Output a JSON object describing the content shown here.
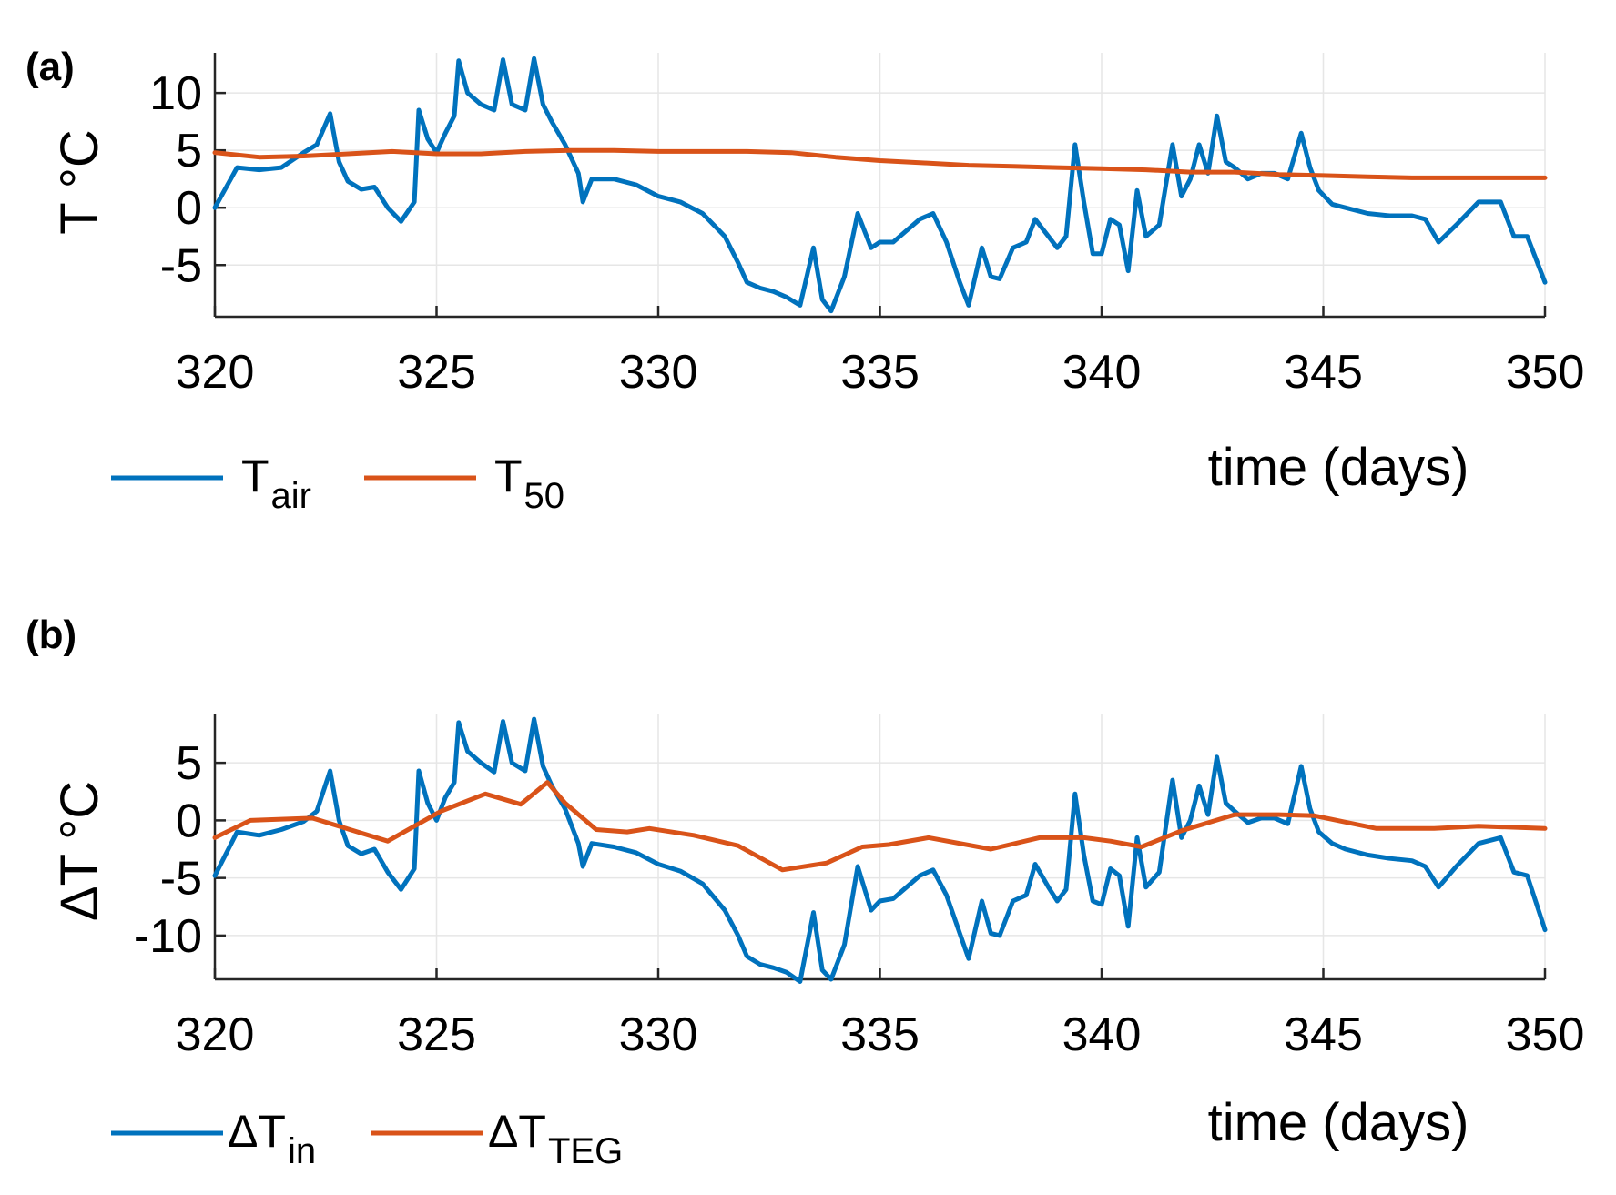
{
  "chart_data": [
    {
      "type": "line",
      "panel_label": "(a)",
      "ylabel": "T °C",
      "xlabel": "time (days)",
      "xlim": [
        320,
        350
      ],
      "ylim": [
        -9.5,
        13.5
      ],
      "xticks": [
        320,
        325,
        330,
        335,
        340,
        345,
        350
      ],
      "yticks": [
        -5,
        0,
        5,
        10
      ],
      "grid": true,
      "legend": [
        {
          "main": "T",
          "sub": "air",
          "color": "#0072BD"
        },
        {
          "main": "T",
          "sub": "50",
          "color": "#D95319"
        }
      ],
      "series": [
        {
          "name": "Tair",
          "color": "#0072BD",
          "x": [
            320.0,
            320.5,
            321.0,
            321.5,
            322.0,
            322.3,
            322.6,
            322.8,
            323.0,
            323.3,
            323.6,
            323.9,
            324.2,
            324.5,
            324.6,
            324.8,
            325.0,
            325.2,
            325.4,
            325.5,
            325.7,
            326.0,
            326.3,
            326.5,
            326.7,
            327.0,
            327.2,
            327.4,
            327.6,
            327.9,
            328.2,
            328.3,
            328.5,
            329.0,
            329.5,
            330.0,
            330.5,
            331.0,
            331.5,
            331.8,
            332.0,
            332.3,
            332.6,
            332.9,
            333.2,
            333.5,
            333.7,
            333.9,
            334.2,
            334.5,
            334.8,
            335.0,
            335.3,
            335.6,
            335.9,
            336.2,
            336.5,
            336.8,
            337.0,
            337.3,
            337.5,
            337.7,
            338.0,
            338.3,
            338.5,
            338.8,
            339.0,
            339.2,
            339.4,
            339.6,
            339.8,
            340.0,
            340.2,
            340.4,
            340.6,
            340.8,
            341.0,
            341.3,
            341.6,
            341.8,
            342.0,
            342.2,
            342.4,
            342.6,
            342.8,
            343.0,
            343.3,
            343.6,
            343.9,
            344.2,
            344.5,
            344.7,
            344.9,
            345.2,
            345.5,
            346.0,
            346.5,
            347.0,
            347.3,
            347.6,
            348.0,
            348.5,
            349.0,
            349.3,
            349.6,
            350.0
          ],
          "y": [
            0,
            3.5,
            3.3,
            3.5,
            4.8,
            5.5,
            8.2,
            4.0,
            2.3,
            1.6,
            1.8,
            0.0,
            -1.2,
            0.5,
            8.5,
            6.0,
            4.8,
            6.5,
            8.0,
            12.8,
            10.0,
            9.0,
            8.5,
            12.9,
            9.0,
            8.5,
            13.0,
            9.0,
            7.5,
            5.5,
            3.0,
            0.5,
            2.5,
            2.5,
            2.0,
            1.0,
            0.5,
            -0.5,
            -2.5,
            -4.8,
            -6.5,
            -7.0,
            -7.3,
            -7.8,
            -8.5,
            -3.5,
            -8.0,
            -9.0,
            -6.0,
            -0.5,
            -3.5,
            -3.0,
            -3.0,
            -2.0,
            -1.0,
            -0.5,
            -3.0,
            -6.5,
            -8.5,
            -3.5,
            -6.0,
            -6.2,
            -3.5,
            -3.0,
            -1.0,
            -2.5,
            -3.5,
            -2.5,
            5.5,
            0.5,
            -4.0,
            -4.0,
            -1.0,
            -1.5,
            -5.5,
            1.5,
            -2.5,
            -1.5,
            5.5,
            1.0,
            2.5,
            5.5,
            3.0,
            8.0,
            4.0,
            3.5,
            2.5,
            3.0,
            3.0,
            2.5,
            6.5,
            3.5,
            1.5,
            0.3,
            0.0,
            -0.5,
            -0.7,
            -0.7,
            -1.0,
            -3.0,
            -1.5,
            0.5,
            0.5,
            -2.5,
            -2.5,
            -6.5
          ]
        },
        {
          "name": "T50",
          "color": "#D95319",
          "x": [
            320,
            321,
            322,
            323,
            324,
            325,
            326,
            327,
            328,
            329,
            330,
            331,
            332,
            333,
            334,
            335,
            336,
            337,
            338,
            339,
            340,
            341,
            342,
            343,
            344,
            345,
            346,
            347,
            348,
            349,
            350
          ],
          "y": [
            4.8,
            4.4,
            4.5,
            4.7,
            4.9,
            4.7,
            4.7,
            4.9,
            5.0,
            5.0,
            4.9,
            4.9,
            4.9,
            4.8,
            4.4,
            4.1,
            3.9,
            3.7,
            3.6,
            3.5,
            3.4,
            3.3,
            3.1,
            3.1,
            2.9,
            2.8,
            2.7,
            2.6,
            2.6,
            2.6,
            2.6
          ]
        }
      ]
    },
    {
      "type": "line",
      "panel_label": "(b)",
      "ylabel": "ΔT °C",
      "xlabel": "time (days)",
      "xlim": [
        320,
        350
      ],
      "ylim": [
        -13.8,
        9.2
      ],
      "xticks": [
        320,
        325,
        330,
        335,
        340,
        345,
        350
      ],
      "yticks": [
        -10,
        -5,
        0,
        5
      ],
      "grid": true,
      "legend": [
        {
          "main": "ΔT",
          "sub": "in",
          "color": "#0072BD"
        },
        {
          "main": "ΔT",
          "sub": "TEG",
          "color": "#D95319"
        }
      ],
      "series": [
        {
          "name": "ΔTin",
          "color": "#0072BD",
          "x": [
            320.0,
            320.5,
            321.0,
            321.5,
            322.0,
            322.3,
            322.6,
            322.8,
            323.0,
            323.3,
            323.6,
            323.9,
            324.2,
            324.5,
            324.6,
            324.8,
            325.0,
            325.2,
            325.4,
            325.5,
            325.7,
            326.0,
            326.3,
            326.5,
            326.7,
            327.0,
            327.2,
            327.4,
            327.6,
            327.9,
            328.2,
            328.3,
            328.5,
            329.0,
            329.5,
            330.0,
            330.5,
            331.0,
            331.5,
            331.8,
            332.0,
            332.3,
            332.6,
            332.9,
            333.2,
            333.5,
            333.7,
            333.9,
            334.2,
            334.5,
            334.8,
            335.0,
            335.3,
            335.6,
            335.9,
            336.2,
            336.5,
            336.8,
            337.0,
            337.3,
            337.5,
            337.7,
            338.0,
            338.3,
            338.5,
            338.8,
            339.0,
            339.2,
            339.4,
            339.6,
            339.8,
            340.0,
            340.2,
            340.4,
            340.6,
            340.8,
            341.0,
            341.3,
            341.6,
            341.8,
            342.0,
            342.2,
            342.4,
            342.6,
            342.8,
            343.0,
            343.3,
            343.6,
            343.9,
            344.2,
            344.5,
            344.7,
            344.9,
            345.2,
            345.5,
            346.0,
            346.5,
            347.0,
            347.3,
            347.6,
            348.0,
            348.5,
            349.0,
            349.3,
            349.6,
            350.0
          ],
          "y": [
            -4.8,
            -1.0,
            -1.3,
            -0.8,
            -0.1,
            0.8,
            4.3,
            0.0,
            -2.2,
            -2.9,
            -2.5,
            -4.5,
            -6.0,
            -4.2,
            4.3,
            1.5,
            0.0,
            2.0,
            3.3,
            8.5,
            6.0,
            5.0,
            4.2,
            8.6,
            5.0,
            4.3,
            8.8,
            4.7,
            3.0,
            1.0,
            -2.0,
            -4.0,
            -2.0,
            -2.3,
            -2.8,
            -3.8,
            -4.4,
            -5.5,
            -7.8,
            -10.0,
            -11.8,
            -12.5,
            -12.8,
            -13.2,
            -14.0,
            -8.0,
            -13.0,
            -13.8,
            -10.8,
            -4.0,
            -7.8,
            -7.0,
            -6.8,
            -5.8,
            -4.8,
            -4.3,
            -6.5,
            -9.8,
            -12.0,
            -7.0,
            -9.8,
            -10.0,
            -7.0,
            -6.5,
            -3.8,
            -5.8,
            -7.0,
            -6.0,
            2.3,
            -3.0,
            -7.0,
            -7.3,
            -4.2,
            -4.8,
            -9.2,
            -1.5,
            -5.8,
            -4.5,
            3.5,
            -1.5,
            0.0,
            3.0,
            0.5,
            5.5,
            1.5,
            0.8,
            -0.2,
            0.2,
            0.2,
            -0.3,
            4.7,
            1.0,
            -1.0,
            -2.0,
            -2.5,
            -3.0,
            -3.3,
            -3.5,
            -4.0,
            -5.8,
            -4.0,
            -2.0,
            -1.5,
            -4.5,
            -4.8,
            -9.5
          ]
        },
        {
          "name": "ΔTTEG",
          "color": "#D95319",
          "x": [
            320.0,
            320.8,
            322.2,
            323.9,
            325.1,
            326.1,
            326.9,
            327.5,
            327.9,
            328.6,
            329.3,
            329.8,
            330.8,
            331.8,
            332.8,
            333.8,
            334.6,
            335.2,
            336.1,
            337.5,
            338.6,
            339.6,
            340.2,
            340.9,
            341.8,
            343.0,
            344.0,
            344.8,
            346.2,
            347.5,
            348.5,
            350.0
          ],
          "y": [
            -1.5,
            0.0,
            0.2,
            -1.8,
            0.8,
            2.3,
            1.4,
            3.3,
            1.5,
            -0.8,
            -1.0,
            -0.7,
            -1.3,
            -2.2,
            -4.3,
            -3.7,
            -2.3,
            -2.1,
            -1.5,
            -2.5,
            -1.5,
            -1.5,
            -1.8,
            -2.3,
            -0.9,
            0.5,
            0.5,
            0.4,
            -0.7,
            -0.7,
            -0.5,
            -0.7
          ]
        }
      ]
    }
  ]
}
